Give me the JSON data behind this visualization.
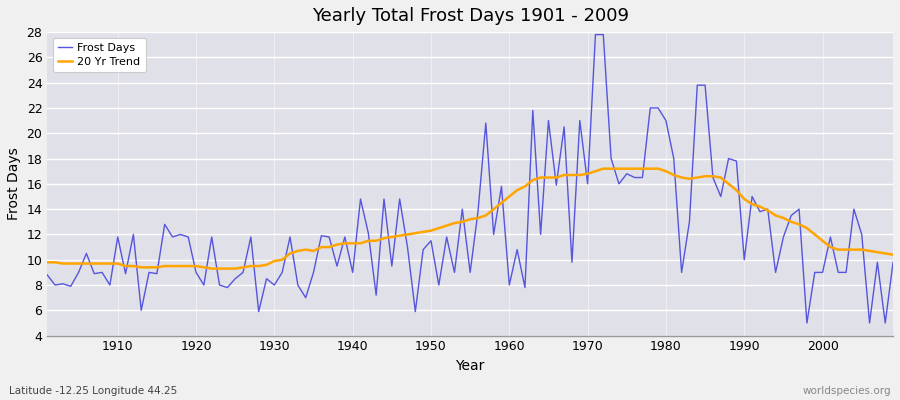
{
  "title": "Yearly Total Frost Days 1901 - 2009",
  "xlabel": "Year",
  "ylabel": "Frost Days",
  "footnote_left": "Latitude -12.25 Longitude 44.25",
  "footnote_right": "worldspecies.org",
  "frost_days_color": "#5555dd",
  "trend_color": "#FFA500",
  "fig_bg_color": "#f0f0f0",
  "plot_bg_color": "#e0e0e8",
  "ylim": [
    4,
    28
  ],
  "yticks": [
    4,
    6,
    8,
    10,
    12,
    14,
    16,
    18,
    20,
    22,
    24,
    26,
    28
  ],
  "xtick_positions": [
    1910,
    1920,
    1930,
    1940,
    1950,
    1960,
    1970,
    1980,
    1990,
    2000
  ],
  "frost_days": {
    "1901": 8.8,
    "1902": 8.0,
    "1903": 8.1,
    "1904": 7.9,
    "1905": 9.0,
    "1906": 10.5,
    "1907": 8.9,
    "1908": 9.0,
    "1909": 8.0,
    "1910": 11.8,
    "1911": 8.9,
    "1912": 12.0,
    "1913": 6.0,
    "1914": 9.0,
    "1915": 8.9,
    "1916": 12.8,
    "1917": 11.8,
    "1918": 12.0,
    "1919": 11.8,
    "1920": 9.0,
    "1921": 8.0,
    "1922": 11.8,
    "1923": 8.0,
    "1924": 7.8,
    "1925": 8.5,
    "1926": 9.0,
    "1927": 11.8,
    "1928": 5.9,
    "1929": 8.5,
    "1930": 8.0,
    "1931": 9.0,
    "1932": 11.8,
    "1933": 8.0,
    "1934": 7.0,
    "1935": 9.0,
    "1936": 11.9,
    "1937": 11.8,
    "1938": 9.5,
    "1939": 11.8,
    "1940": 9.0,
    "1941": 14.8,
    "1942": 12.1,
    "1943": 7.2,
    "1944": 14.8,
    "1945": 9.5,
    "1946": 14.8,
    "1947": 11.0,
    "1948": 5.9,
    "1949": 10.8,
    "1950": 11.5,
    "1951": 8.0,
    "1952": 11.8,
    "1953": 9.0,
    "1954": 14.0,
    "1955": 9.0,
    "1956": 13.8,
    "1957": 20.8,
    "1958": 12.0,
    "1959": 15.8,
    "1960": 8.0,
    "1961": 10.8,
    "1962": 7.8,
    "1963": 21.8,
    "1964": 12.0,
    "1965": 21.0,
    "1966": 15.9,
    "1967": 20.5,
    "1968": 9.8,
    "1969": 21.0,
    "1970": 16.0,
    "1971": 27.8,
    "1972": 27.8,
    "1973": 18.0,
    "1974": 16.0,
    "1975": 16.8,
    "1976": 16.5,
    "1977": 16.5,
    "1978": 22.0,
    "1979": 22.0,
    "1980": 21.0,
    "1981": 18.0,
    "1982": 9.0,
    "1983": 13.0,
    "1984": 23.8,
    "1985": 23.8,
    "1986": 16.5,
    "1987": 15.0,
    "1988": 18.0,
    "1989": 17.8,
    "1990": 10.0,
    "1991": 15.0,
    "1992": 13.8,
    "1993": 14.0,
    "1994": 9.0,
    "1995": 11.8,
    "1996": 13.5,
    "1997": 14.0,
    "1998": 5.0,
    "1999": 9.0,
    "2000": 9.0,
    "2001": 11.8,
    "2002": 9.0,
    "2003": 9.0,
    "2004": 14.0,
    "2005": 12.0,
    "2006": 5.0,
    "2007": 9.8,
    "2008": 5.0,
    "2009": 9.8
  },
  "trend_data": {
    "1901": 9.8,
    "1902": 9.8,
    "1903": 9.7,
    "1904": 9.7,
    "1905": 9.7,
    "1906": 9.7,
    "1907": 9.7,
    "1908": 9.7,
    "1909": 9.7,
    "1910": 9.7,
    "1911": 9.5,
    "1912": 9.5,
    "1913": 9.4,
    "1914": 9.4,
    "1915": 9.4,
    "1916": 9.5,
    "1917": 9.5,
    "1918": 9.5,
    "1919": 9.5,
    "1920": 9.5,
    "1921": 9.4,
    "1922": 9.3,
    "1923": 9.3,
    "1924": 9.3,
    "1925": 9.3,
    "1926": 9.4,
    "1927": 9.5,
    "1928": 9.5,
    "1929": 9.6,
    "1930": 9.9,
    "1931": 10.0,
    "1932": 10.5,
    "1933": 10.7,
    "1934": 10.8,
    "1935": 10.7,
    "1936": 11.0,
    "1937": 11.0,
    "1938": 11.2,
    "1939": 11.3,
    "1940": 11.3,
    "1941": 11.3,
    "1942": 11.5,
    "1943": 11.5,
    "1944": 11.7,
    "1945": 11.8,
    "1946": 11.9,
    "1947": 12.0,
    "1948": 12.1,
    "1949": 12.2,
    "1950": 12.3,
    "1951": 12.5,
    "1952": 12.7,
    "1953": 12.9,
    "1954": 13.0,
    "1955": 13.2,
    "1956": 13.3,
    "1957": 13.5,
    "1958": 14.0,
    "1959": 14.5,
    "1960": 15.0,
    "1961": 15.5,
    "1962": 15.8,
    "1963": 16.3,
    "1964": 16.5,
    "1965": 16.5,
    "1966": 16.5,
    "1967": 16.7,
    "1968": 16.7,
    "1969": 16.7,
    "1970": 16.8,
    "1971": 17.0,
    "1972": 17.2,
    "1973": 17.2,
    "1974": 17.2,
    "1975": 17.2,
    "1976": 17.2,
    "1977": 17.2,
    "1978": 17.2,
    "1979": 17.2,
    "1980": 17.0,
    "1981": 16.7,
    "1982": 16.5,
    "1983": 16.4,
    "1984": 16.5,
    "1985": 16.6,
    "1986": 16.6,
    "1987": 16.5,
    "1988": 16.0,
    "1989": 15.5,
    "1990": 14.8,
    "1991": 14.4,
    "1992": 14.2,
    "1993": 13.9,
    "1994": 13.5,
    "1995": 13.3,
    "1996": 13.0,
    "1997": 12.8,
    "1998": 12.5,
    "1999": 12.0,
    "2000": 11.5,
    "2001": 11.0,
    "2002": 10.8,
    "2003": 10.8,
    "2004": 10.8,
    "2005": 10.8,
    "2006": 10.7,
    "2007": 10.6,
    "2008": 10.5,
    "2009": 10.4
  }
}
